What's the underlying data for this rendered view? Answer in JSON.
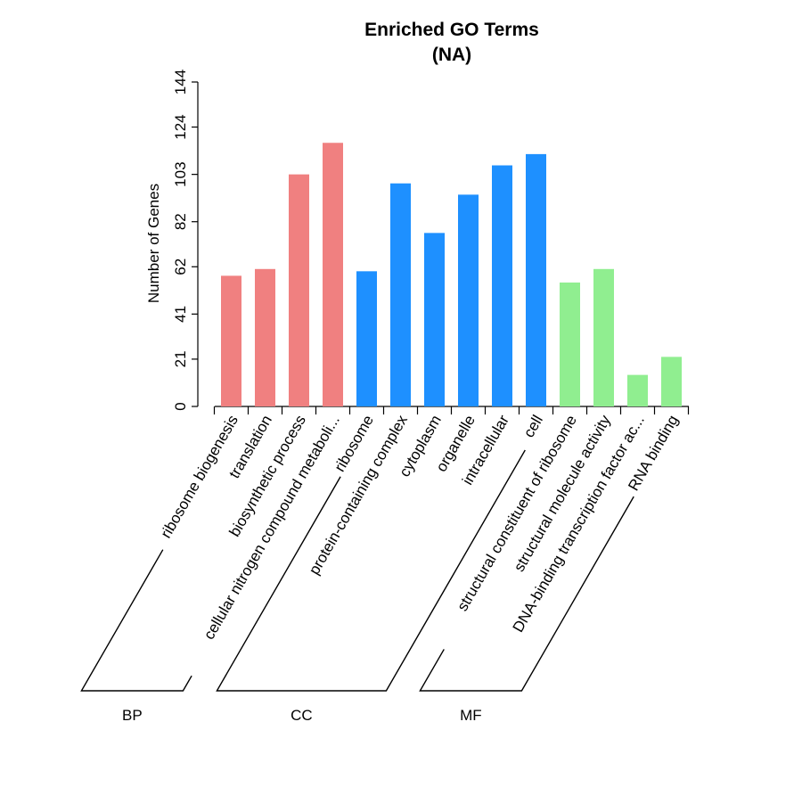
{
  "chart_data": {
    "type": "bar",
    "title": "Enriched GO Terms",
    "subtitle": "(NA)",
    "ylabel": "Number of Genes",
    "ylim": [
      0,
      144
    ],
    "yticks": [
      0,
      21,
      41,
      62,
      82,
      103,
      124,
      144
    ],
    "grid": false,
    "categories": [
      "ribosome biogenesis",
      "translation",
      "biosynthetic process",
      "cellular nitrogen compound metaboli...",
      "ribosome",
      "protein-containing complex",
      "cytoplasm",
      "organelle",
      "intracellular",
      "cell",
      "structural constituent of ribosome",
      "structural molecule activity",
      "DNA-binding transcription factor ac...",
      "RNA binding"
    ],
    "values": [
      58,
      61,
      103,
      117,
      60,
      99,
      77,
      94,
      107,
      112,
      55,
      61,
      14,
      22
    ],
    "groups": [
      {
        "name": "BP",
        "color": "#F08080",
        "indices": [
          0,
          1,
          2,
          3
        ]
      },
      {
        "name": "CC",
        "color": "#1E90FF",
        "indices": [
          4,
          5,
          6,
          7,
          8,
          9
        ]
      },
      {
        "name": "MF",
        "color": "#90EE90",
        "indices": [
          10,
          11,
          12,
          13
        ]
      }
    ]
  }
}
